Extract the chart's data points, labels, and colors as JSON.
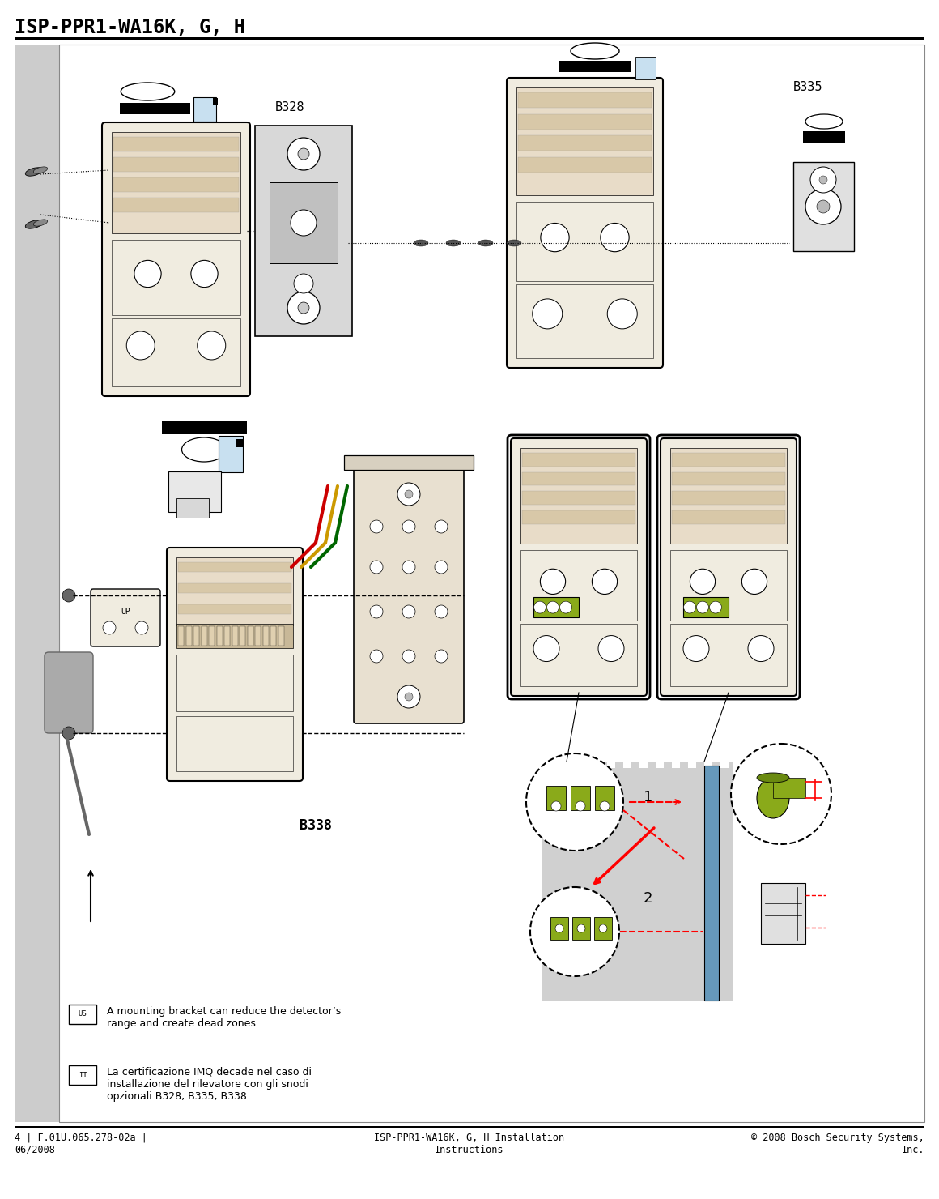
{
  "title": "ISP-PPR1-WA16K, G, H",
  "footer_left": "4 | F.01U.065.278-02a |\n06/2008",
  "footer_center": "ISP-PPR1-WA16K, G, H Installation\nInstructions",
  "footer_right": "© 2008 Bosch Security Systems,\nInc.",
  "label_B328": "B328",
  "label_B335": "B335",
  "label_B338": "B338",
  "note_us": "A mounting bracket can reduce the detector’s\nrange and create dead zones.",
  "note_it": "La certificazione IMQ decade nel caso di\ninstallazione del rilevatore con gli snodi\nopzionali B328, B335, B338",
  "bg": "#ffffff",
  "gray_strip": "#cccccc",
  "det_fill": "#f0ece0",
  "det_edge": "#000000",
  "bracket_fill": "#e0e0e0",
  "pcb_fill": "#e8dcc8",
  "green_fill": "#8aaa1a",
  "title_fs": 17,
  "footer_fs": 8.5,
  "label_fs": 10,
  "note_fs": 9
}
